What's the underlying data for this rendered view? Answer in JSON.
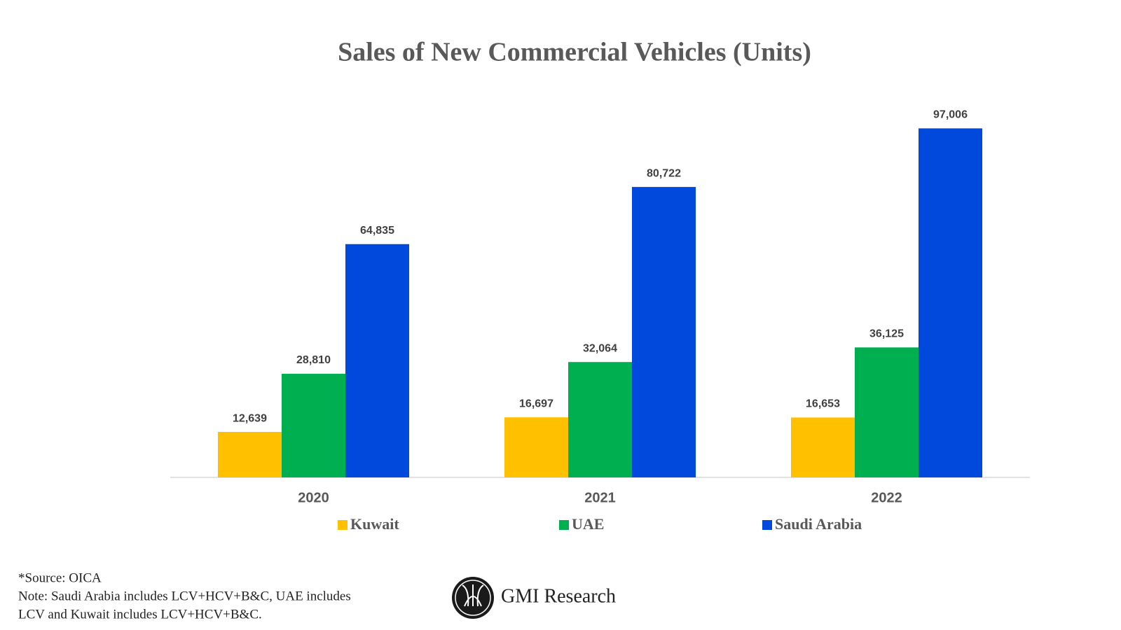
{
  "chart_data": {
    "type": "bar",
    "title": "Sales of New Commercial Vehicles (Units)",
    "categories": [
      "2020",
      "2021",
      "2022"
    ],
    "series": [
      {
        "name": "Kuwait",
        "color": "#ffc000",
        "values": [
          12639,
          16697,
          16653
        ],
        "value_labels": [
          "12,639",
          "16,697",
          "16,653"
        ]
      },
      {
        "name": "UAE",
        "color": "#00b050",
        "values": [
          28810,
          32064,
          36125
        ],
        "value_labels": [
          "28,810",
          "32,064",
          "36,125"
        ]
      },
      {
        "name": "Saudi Arabia",
        "color": "#0049dc",
        "values": [
          64835,
          80722,
          97006
        ],
        "value_labels": [
          "64,835",
          "80,722",
          "97,006"
        ]
      }
    ],
    "ylim": [
      0,
      100000
    ],
    "grid": false,
    "source": "*Source: OICA",
    "note": [
      "Note: Saudi Arabia includes LCV+HCV+B&C, UAE includes",
      "LCV and Kuwait includes LCV+HCV+B&C."
    ]
  },
  "brand": "GMI Research"
}
